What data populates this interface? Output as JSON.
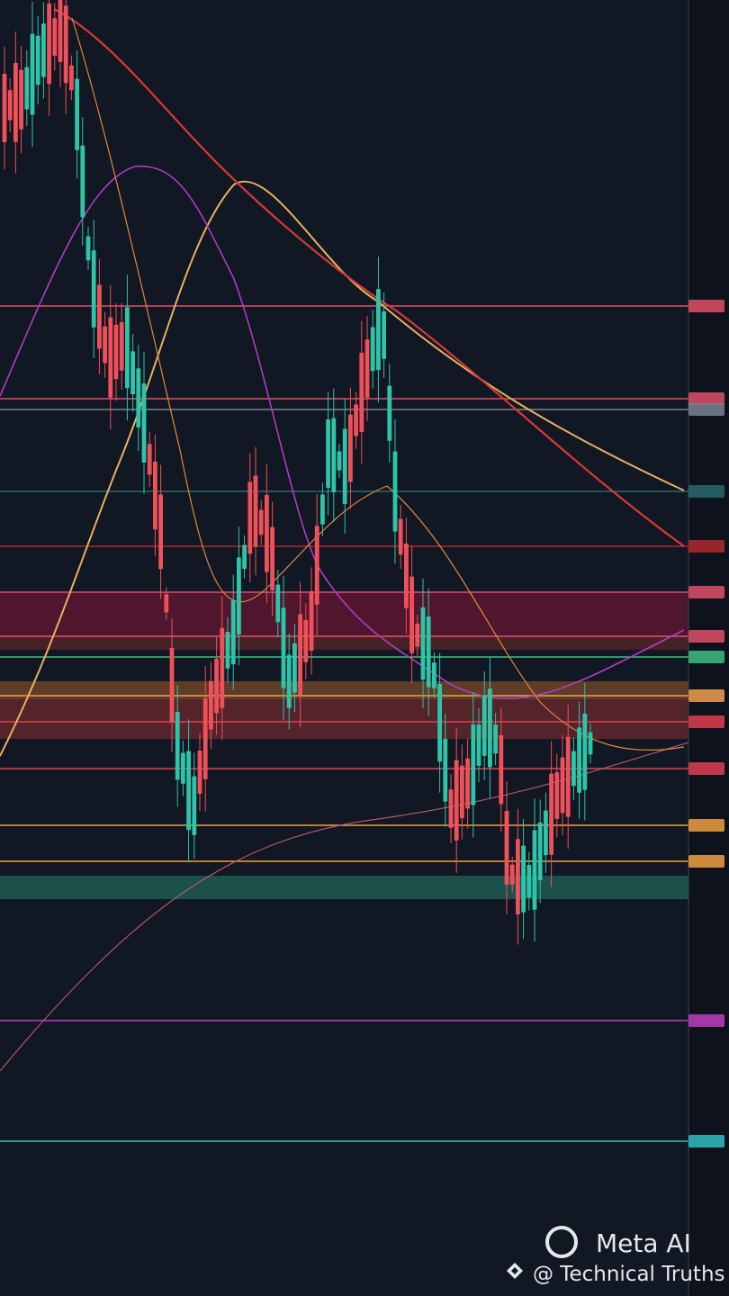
{
  "watermark": {
    "brand": "Meta AI",
    "credit": "@ Technical Truths"
  }
}
